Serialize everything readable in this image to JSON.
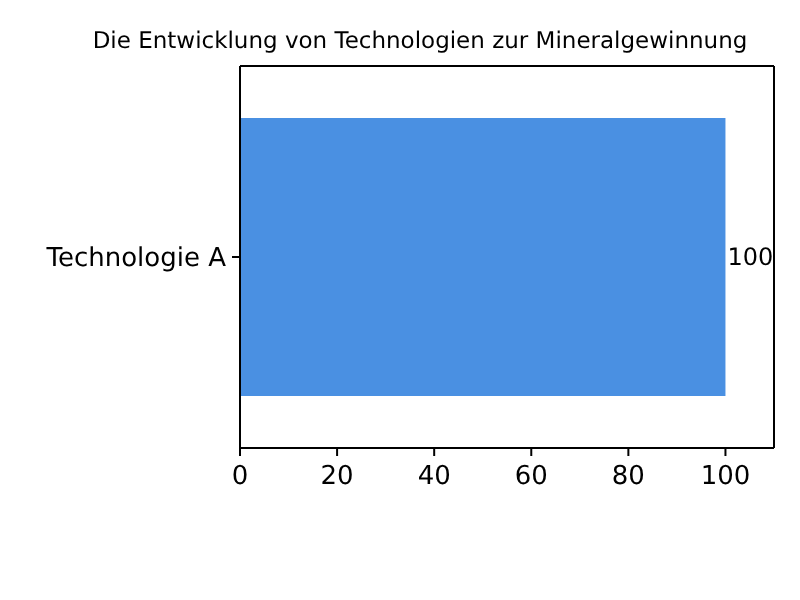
{
  "chart_data": {
    "type": "bar",
    "orientation": "horizontal",
    "title": "Die Entwicklung von Technologien zur Mineralgewinnung",
    "categories": [
      "Technologie A"
    ],
    "values": [
      100
    ],
    "color": "#4a90e2",
    "xlim": [
      0,
      110
    ],
    "xticks": [
      0,
      20,
      40,
      60,
      80,
      100
    ],
    "data_labels": true
  }
}
